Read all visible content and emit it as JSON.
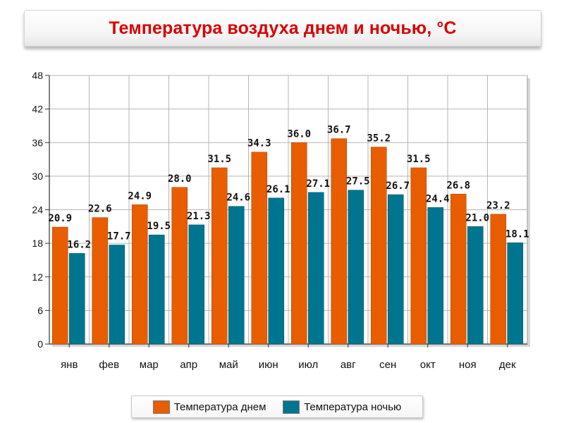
{
  "title": "Температура воздуха днем и ночью, °C",
  "colors": {
    "day": "#e85d00",
    "night": "#007590",
    "title": "#d90000"
  },
  "legend": [
    {
      "label": "Температура днем",
      "color": "#e85d00"
    },
    {
      "label": "Температура ночью",
      "color": "#007590"
    }
  ],
  "chart_data": {
    "type": "bar",
    "title": "Температура воздуха днем и ночью, °C",
    "categories": [
      "янв",
      "фев",
      "мар",
      "апр",
      "май",
      "июн",
      "июл",
      "авг",
      "сен",
      "окт",
      "ноя",
      "дек"
    ],
    "series": [
      {
        "name": "Температура днем",
        "color": "#e85d00",
        "values": [
          20.9,
          22.6,
          24.9,
          28.0,
          31.5,
          34.3,
          36.0,
          36.7,
          35.2,
          31.5,
          26.8,
          23.2
        ]
      },
      {
        "name": "Температура ночью",
        "color": "#007590",
        "values": [
          16.2,
          17.7,
          19.5,
          21.3,
          24.6,
          26.1,
          27.1,
          27.5,
          26.7,
          24.4,
          21.0,
          18.1
        ]
      }
    ],
    "ylim": [
      0,
      48
    ],
    "yticks": [
      0,
      6,
      12,
      18,
      24,
      30,
      36,
      42,
      48
    ],
    "grid": true,
    "legend_position": "bottom",
    "xlabel": "",
    "ylabel": ""
  }
}
